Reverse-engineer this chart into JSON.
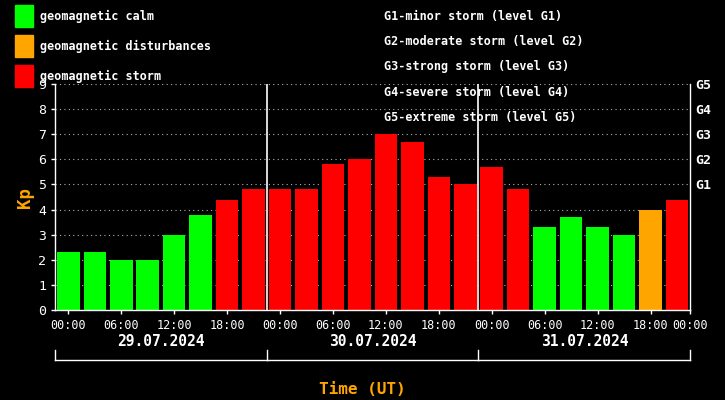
{
  "background_color": "#000000",
  "bar_width": 0.85,
  "kp_values": [
    2.3,
    2.3,
    2.0,
    2.0,
    3.0,
    3.8,
    4.4,
    4.8,
    4.8,
    4.8,
    5.8,
    6.0,
    7.0,
    6.7,
    5.3,
    5.0,
    5.7,
    4.8,
    3.3,
    3.7,
    3.3,
    3.0,
    4.0,
    4.4
  ],
  "bar_colors": [
    "#00ff00",
    "#00ff00",
    "#00ff00",
    "#00ff00",
    "#00ff00",
    "#00ff00",
    "#ff0000",
    "#ff0000",
    "#ff0000",
    "#ff0000",
    "#ff0000",
    "#ff0000",
    "#ff0000",
    "#ff0000",
    "#ff0000",
    "#ff0000",
    "#ff0000",
    "#ff0000",
    "#00ff00",
    "#00ff00",
    "#00ff00",
    "#00ff00",
    "#ffa500",
    "#ff0000"
  ],
  "ylim": [
    0,
    9
  ],
  "yticks": [
    0,
    1,
    2,
    3,
    4,
    5,
    6,
    7,
    8,
    9
  ],
  "day_labels": [
    "29.07.2024",
    "30.07.2024",
    "31.07.2024"
  ],
  "vline_positions": [
    7.5,
    15.5
  ],
  "xtick_labels": [
    "00:00",
    "06:00",
    "12:00",
    "18:00",
    "00:00",
    "06:00",
    "12:00",
    "18:00",
    "00:00",
    "06:00",
    "12:00",
    "18:00",
    "00:00"
  ],
  "title_color": "#ffa500",
  "ylabel": "Kp",
  "xlabel": "Time (UT)",
  "right_axis_labels": [
    "G1",
    "G2",
    "G3",
    "G4",
    "G5"
  ],
  "right_axis_positions": [
    5,
    6,
    7,
    8,
    9
  ],
  "legend_items": [
    {
      "label": "geomagnetic calm",
      "color": "#00ff00"
    },
    {
      "label": "geomagnetic disturbances",
      "color": "#ffa500"
    },
    {
      "label": "geomagnetic storm",
      "color": "#ff0000"
    }
  ],
  "info_lines": [
    "G1-minor storm (level G1)",
    "G2-moderate storm (level G2)",
    "G3-strong storm (level G3)",
    "G4-severe storm (level G4)",
    "G5-extreme storm (level G5)"
  ],
  "font_color": "#ffffff",
  "grid_color": "#ffffff",
  "axis_color": "#ffffff",
  "font_size": 8.5
}
